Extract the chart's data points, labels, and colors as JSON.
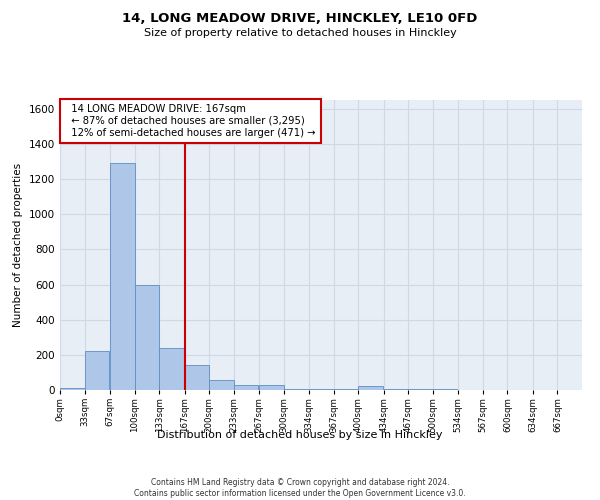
{
  "title1": "14, LONG MEADOW DRIVE, HINCKLEY, LE10 0FD",
  "title2": "Size of property relative to detached houses in Hinckley",
  "xlabel": "Distribution of detached houses by size in Hinckley",
  "ylabel": "Number of detached properties",
  "footnote": "Contains HM Land Registry data © Crown copyright and database right 2024.\nContains public sector information licensed under the Open Government Licence v3.0.",
  "bin_edges": [
    0,
    33,
    67,
    100,
    133,
    167,
    200,
    233,
    267,
    300,
    334,
    367,
    400,
    434,
    467,
    500,
    534,
    567,
    600,
    634,
    667
  ],
  "bar_heights": [
    10,
    220,
    1290,
    600,
    240,
    140,
    55,
    30,
    30,
    5,
    5,
    3,
    20,
    3,
    3,
    3,
    0,
    0,
    0,
    0
  ],
  "bar_color": "#aec6e8",
  "bar_edge_color": "#5b8ec4",
  "property_size": 167,
  "vline_color": "#cc0000",
  "annotation_text": "  14 LONG MEADOW DRIVE: 167sqm\n  ← 87% of detached houses are smaller (3,295)\n  12% of semi-detached houses are larger (471) →",
  "annotation_box_color": "#cc0000",
  "ylim": [
    0,
    1650
  ],
  "yticks": [
    0,
    200,
    400,
    600,
    800,
    1000,
    1200,
    1400,
    1600
  ],
  "tick_labels": [
    "0sqm",
    "33sqm",
    "67sqm",
    "100sqm",
    "133sqm",
    "167sqm",
    "200sqm",
    "233sqm",
    "267sqm",
    "300sqm",
    "334sqm",
    "367sqm",
    "400sqm",
    "434sqm",
    "467sqm",
    "500sqm",
    "534sqm",
    "567sqm",
    "600sqm",
    "634sqm",
    "667sqm"
  ],
  "grid_color": "#d0d8e8",
  "bg_color": "#e8eef5"
}
